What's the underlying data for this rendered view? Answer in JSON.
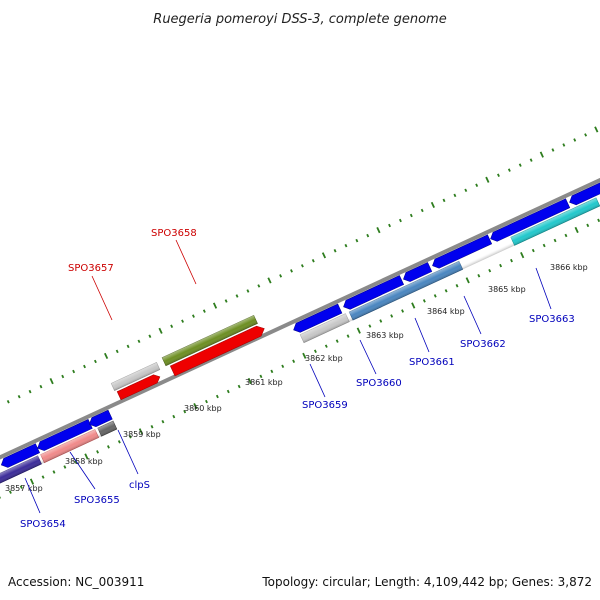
{
  "title": "Ruegeria pomeroyi DSS-3, complete genome",
  "footer": {
    "accession": "Accession: NC_003911",
    "topology": "Topology: circular; Length: 4,109,442 bp; Genes: 3,872"
  },
  "colors": {
    "backbone": "#8a8a8a",
    "tick": "#2e7d1e",
    "label_forward": "#cc0000",
    "label_reverse": "#0000bb"
  },
  "kbp_labels": [
    "3857 kbp",
    "3858 kbp",
    "3859 kbp",
    "3860 kbp",
    "3861 kbp",
    "3862 kbp",
    "3863 kbp",
    "3864 kbp",
    "3865 kbp",
    "3866 kbp"
  ],
  "genes": [
    {
      "label": "SPO3654",
      "strand": "reverse",
      "color": "#3d2d9a"
    },
    {
      "label": "SPO3655",
      "strand": "reverse",
      "color": "#f08a8a"
    },
    {
      "label": "clpS",
      "strand": "reverse",
      "color": "#666666"
    },
    {
      "label": "SPO3657",
      "strand": "forward",
      "color": "#c8c8c8"
    },
    {
      "label": "SPO3658",
      "strand": "forward",
      "color": "#6e8f24"
    },
    {
      "label": "SPO3659",
      "strand": "reverse",
      "color": "#c8c8c8"
    },
    {
      "label": "SPO3660",
      "strand": "reverse",
      "color": "#4a86c0"
    },
    {
      "label": "SPO3661",
      "strand": "reverse",
      "color": "#0000ee"
    },
    {
      "label": "SPO3662",
      "strand": "reverse",
      "color": "#0000ee"
    },
    {
      "label": "SPO3663",
      "strand": "reverse",
      "color": "#22c8cc"
    }
  ]
}
